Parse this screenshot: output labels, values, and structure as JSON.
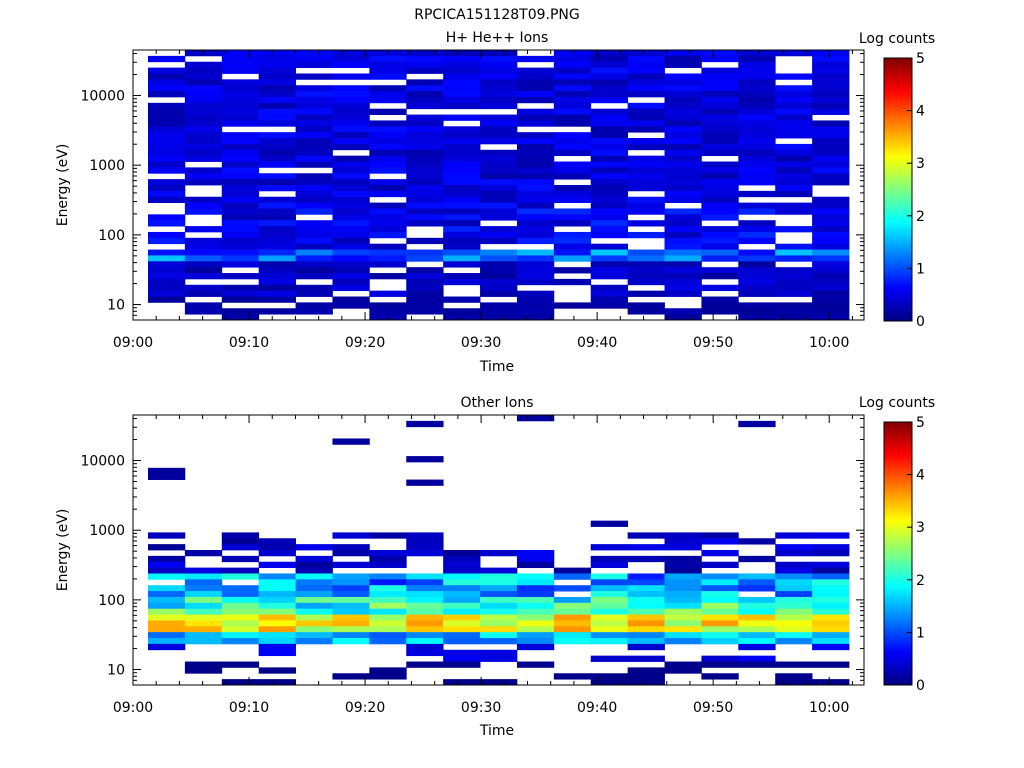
{
  "title": "RPCICA151128T09.PNG",
  "colorbar": {
    "min": 0,
    "max": 5,
    "ticks": [
      "0",
      "1",
      "2",
      "3",
      "4",
      "5"
    ],
    "colormap": "jet"
  },
  "time_ticks": [
    "09:00",
    "09:10",
    "09:20",
    "09:30",
    "09:40",
    "09:50",
    "10:00"
  ],
  "energy_ticks": [
    "10",
    "100",
    "1000",
    "10000"
  ],
  "chart_data": [
    {
      "type": "heatmap",
      "title": "H+ He++ Ions",
      "xlabel": "Time",
      "ylabel": "Energy (eV)",
      "colorbar_label": "Log counts",
      "x_range": [
        "09:00",
        "10:03"
      ],
      "x_ticks": [
        "09:00",
        "09:10",
        "09:20",
        "09:30",
        "09:40",
        "09:50",
        "10:00"
      ],
      "y_scale": "log",
      "y_range_eV": [
        6,
        45000
      ],
      "y_ticks": [
        10,
        100,
        1000,
        10000
      ],
      "time_bins": [
        "09:01",
        "09:04",
        "09:07",
        "09:10",
        "09:14",
        "09:17",
        "09:20",
        "09:23",
        "09:27",
        "09:30",
        "09:33",
        "09:36",
        "09:40",
        "09:43",
        "09:46",
        "09:49",
        "09:53",
        "09:56",
        "09:59"
      ],
      "log_counts_by_energy_band": [
        {
          "energy_eV": "10-40",
          "log_counts": 0.15
        },
        {
          "energy_eV": "40-60",
          "log_counts": 1.2
        },
        {
          "energy_eV": "60-300",
          "log_counts": 0.35
        },
        {
          "energy_eV": "300-45000",
          "log_counts": 0.3
        }
      ],
      "peak_log_counts": 1.7,
      "peak_energy_eV": 50
    },
    {
      "type": "heatmap",
      "title": "Other Ions",
      "xlabel": "Time",
      "ylabel": "Energy (eV)",
      "colorbar_label": "Log counts",
      "x_range": [
        "09:00",
        "10:03"
      ],
      "x_ticks": [
        "09:00",
        "09:10",
        "09:20",
        "09:30",
        "09:40",
        "09:50",
        "10:00"
      ],
      "y_scale": "log",
      "y_range_eV": [
        6,
        45000
      ],
      "y_ticks": [
        10,
        100,
        1000,
        10000
      ],
      "time_bins": [
        "09:01",
        "09:04",
        "09:07",
        "09:10",
        "09:14",
        "09:17",
        "09:20",
        "09:23",
        "09:27",
        "09:30",
        "09:33",
        "09:36",
        "09:40",
        "09:43",
        "09:46",
        "09:49",
        "09:53",
        "09:56",
        "09:59"
      ],
      "log_counts_by_energy_band": [
        {
          "energy_eV": "10-30",
          "log_counts": 0.3
        },
        {
          "energy_eV": "30-60",
          "log_counts": 3.1
        },
        {
          "energy_eV": "60-150",
          "log_counts": 2.0
        },
        {
          "energy_eV": "150-800",
          "log_counts": 0.8
        },
        {
          "energy_eV": "800-40000",
          "log_counts": 0.1
        }
      ],
      "peak_log_counts": 3.6,
      "peak_energy_eV": 45
    }
  ]
}
